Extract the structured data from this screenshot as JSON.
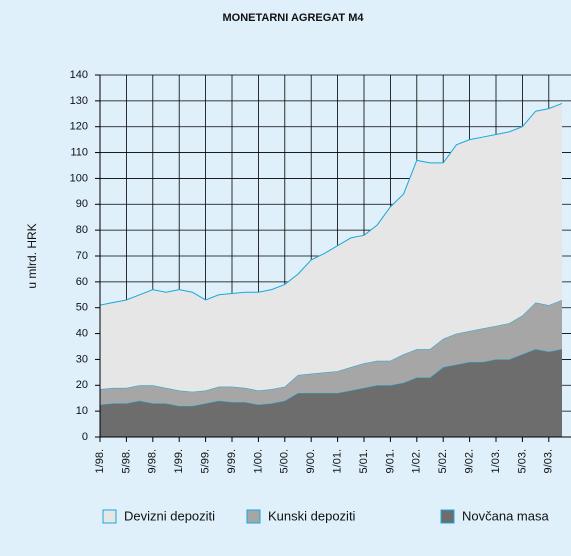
{
  "chart_data": {
    "type": "stacked_area",
    "title": "MONETARNI AGREGAT M4",
    "ylabel": "u mlrd. HRK",
    "categories": [
      "1/98.",
      null,
      "5/98.",
      null,
      "9/98.",
      null,
      "1/99.",
      null,
      "5/99.",
      null,
      "9/99.",
      null,
      "1/00.",
      null,
      "5/00.",
      null,
      "9/00.",
      null,
      "1/01.",
      null,
      "5/01.",
      null,
      "9/01.",
      null,
      "1/02.",
      null,
      "5/02.",
      null,
      "9/02.",
      null,
      "1/03.",
      null,
      "5/03.",
      null,
      "9/03.",
      null
    ],
    "series": [
      {
        "name": "Devizni depoziti",
        "color": "#e6e6e6",
        "values": [
          32.5,
          33,
          34,
          35,
          37,
          37,
          39,
          38.5,
          35,
          35.5,
          36,
          37,
          38,
          38.5,
          39.5,
          39,
          44,
          46,
          48.5,
          50,
          49.5,
          52.5,
          59.5,
          62,
          73,
          72,
          68,
          73,
          74,
          74,
          74,
          74,
          73,
          74,
          76,
          76
        ]
      },
      {
        "name": "Kunski depoziti",
        "color": "#a6a6a6",
        "values": [
          6,
          6,
          6,
          6,
          7,
          6,
          6,
          5.5,
          5,
          5.5,
          6,
          5.5,
          5.5,
          5.5,
          5.5,
          7,
          7.5,
          8,
          8.5,
          9,
          9.5,
          9.5,
          9.5,
          11,
          11,
          11,
          11,
          12,
          12,
          13,
          13,
          14,
          15,
          18,
          18,
          19
        ]
      },
      {
        "name": "Novčana masa",
        "color": "#6d6d6d",
        "values": [
          12.5,
          13,
          13,
          14,
          13,
          13,
          12,
          12,
          13,
          14,
          13.5,
          13.5,
          12.5,
          13,
          14,
          17,
          17,
          17,
          17,
          18,
          19,
          20,
          20,
          21,
          23,
          23,
          27,
          28,
          29,
          29,
          30,
          30,
          32,
          34,
          33,
          34
        ]
      }
    ],
    "line_color": "#19a7dc",
    "ylim": [
      0,
      140
    ],
    "yticks": [
      0,
      10,
      20,
      30,
      40,
      50,
      60,
      70,
      80,
      90,
      100,
      110,
      120,
      130,
      140
    ],
    "grid": true
  }
}
